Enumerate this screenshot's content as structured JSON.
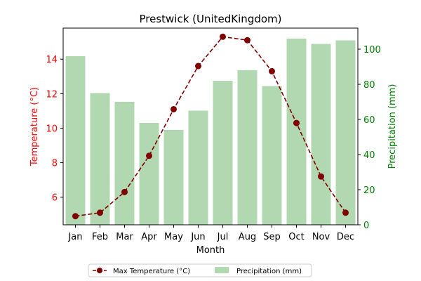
{
  "chart_data": {
    "type": "bar",
    "title": "Prestwick (UnitedKingdom)",
    "xlabel": "Month",
    "ylabel_left": "Temperature (°C)",
    "ylabel_right": "Precipitation (mm)",
    "categories": [
      "Jan",
      "Feb",
      "Mar",
      "Apr",
      "May",
      "Jun",
      "Jul",
      "Aug",
      "Sep",
      "Oct",
      "Nov",
      "Dec"
    ],
    "series": [
      {
        "name": "Max Temperature (°C)",
        "type": "line",
        "axis": "left",
        "style": "dashed-with-circle-markers",
        "color": "#800000",
        "values": [
          4.9,
          5.1,
          6.3,
          8.4,
          11.1,
          13.6,
          15.3,
          15.1,
          13.3,
          10.3,
          7.2,
          5.1
        ]
      },
      {
        "name": "Precipitation (mm)",
        "type": "bar",
        "axis": "right",
        "color": "#b2d8b2",
        "values": [
          96,
          75,
          70,
          58,
          54,
          65,
          82,
          88,
          79,
          106,
          103,
          105
        ]
      }
    ],
    "ylim_left": [
      4.4,
      15.8
    ],
    "yticks_left": [
      6,
      8,
      10,
      12,
      14
    ],
    "ylim_right": [
      0,
      112
    ],
    "yticks_right": [
      0,
      20,
      40,
      60,
      80,
      100
    ],
    "left_axis_color": "#ff0000",
    "right_axis_color": "#008000",
    "grid": false,
    "legend_position": "bottom-center"
  }
}
